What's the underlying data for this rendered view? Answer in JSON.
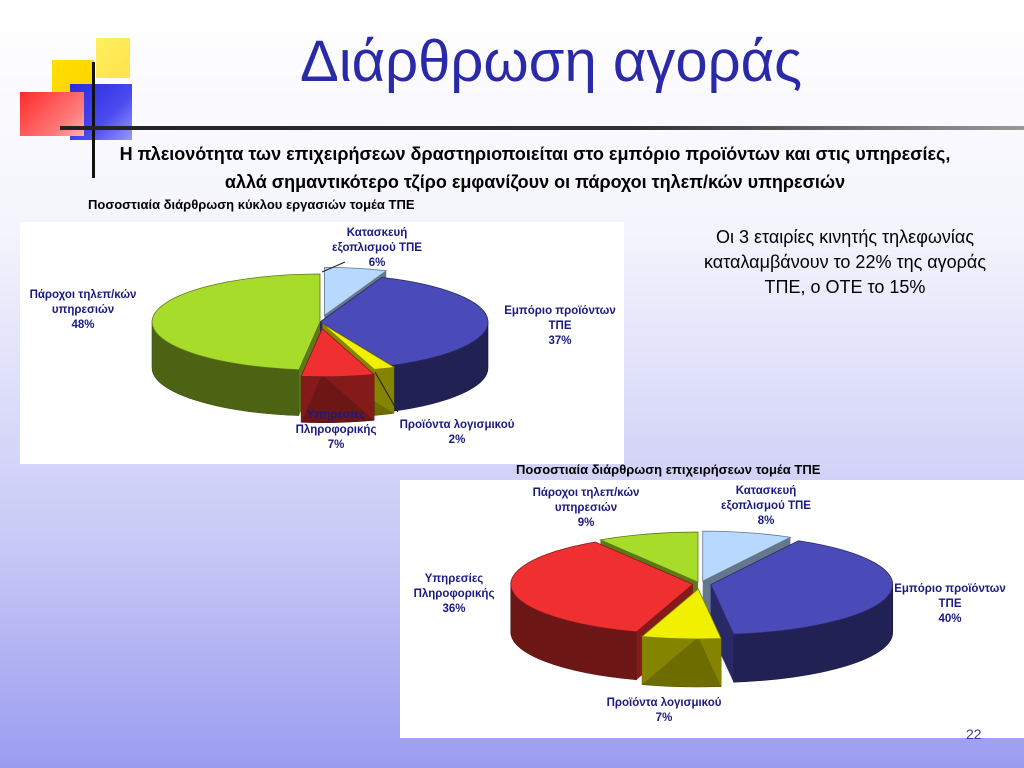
{
  "slide": {
    "title": "Διάρθρωση αγοράς",
    "subtitle_line1": "Η πλειονότητα των επιχειρήσεων δραστηριοποιείται στο εμπόριο προϊόντων και στις υπηρεσίες,",
    "subtitle_line2": "αλλά σημαντικότερο τζίρο εμφανίζουν οι πάροχοι τηλεπ/κών υπηρεσιών",
    "note": "Οι 3 εταιρίες κινητής τηλεφωνίας καταλαμβάνουν το 22% της αγοράς ΤΠΕ, ο ΟΤΕ το 15%",
    "page_number": "22"
  },
  "chart_data": [
    {
      "type": "pie",
      "title": "Ποσοστιαία διάρθρωση κύκλου εργασιών τομέα ΤΠΕ",
      "slices": [
        {
          "label_lines": [
            "Κατασκευή",
            "εξοπλισμού ΤΠΕ"
          ],
          "value": 6,
          "value_text": "6%",
          "color": "#b7d8ff"
        },
        {
          "label_lines": [
            "Εμπόριο προϊόντων",
            "ΤΠΕ"
          ],
          "value": 37,
          "value_text": "37%",
          "color": "#4a4ab8"
        },
        {
          "label_lines": [
            "Προϊόντα λογισμικού"
          ],
          "value": 2,
          "value_text": "2%",
          "color": "#f0f000"
        },
        {
          "label_lines": [
            "Υπηρεσίες",
            "Πληροφορικής"
          ],
          "value": 7,
          "value_text": "7%",
          "color": "#f03030"
        },
        {
          "label_lines": [
            "Πάροχοι τηλεπ/κών",
            "υπηρεσιών"
          ],
          "value": 48,
          "value_text": "48%",
          "color": "#a8dc2a"
        }
      ]
    },
    {
      "type": "pie",
      "title": "Ποσοστιαία διάρθρωση επιχειρήσεων τομέα ΤΠΕ",
      "slices": [
        {
          "label_lines": [
            "Κατασκευή",
            "εξοπλισμού ΤΠΕ"
          ],
          "value": 8,
          "value_text": "8%",
          "color": "#b7d8ff"
        },
        {
          "label_lines": [
            "Εμπόριο προϊόντων",
            "ΤΠΕ"
          ],
          "value": 40,
          "value_text": "40%",
          "color": "#4a4ab8"
        },
        {
          "label_lines": [
            "Προϊόντα λογισμικού"
          ],
          "value": 7,
          "value_text": "7%",
          "color": "#f0f000"
        },
        {
          "label_lines": [
            "Υπηρεσίες",
            "Πληροφορικής"
          ],
          "value": 36,
          "value_text": "36%",
          "color": "#f03030"
        },
        {
          "label_lines": [
            "Πάροχοι τηλεπ/κών",
            "υπηρεσιών"
          ],
          "value": 9,
          "value_text": "9%",
          "color": "#a8dc2a"
        }
      ]
    }
  ]
}
